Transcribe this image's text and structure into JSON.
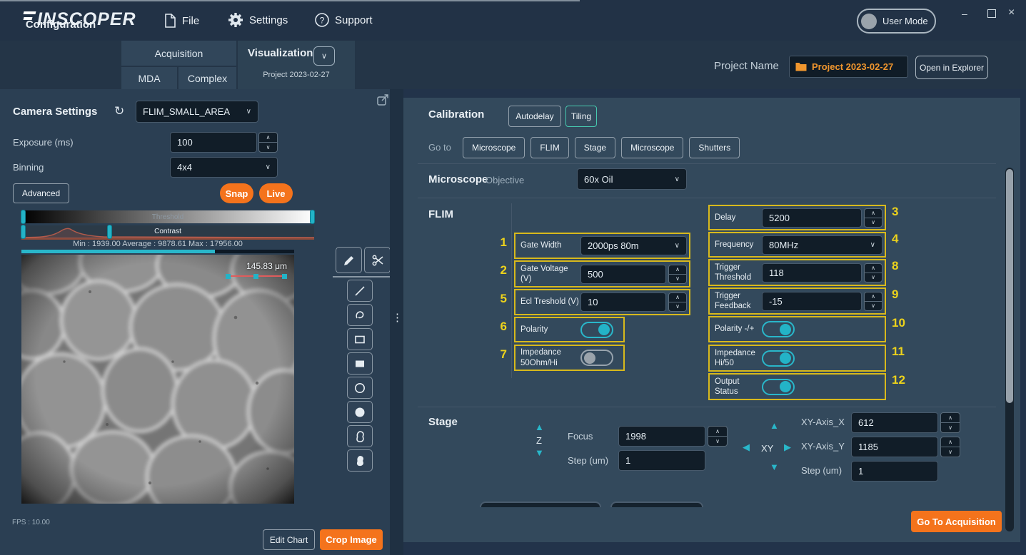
{
  "titlebar": {
    "brand": "INSCOPER",
    "menu_file": "File",
    "menu_settings": "Settings",
    "menu_support": "Support",
    "user_mode": "User Mode"
  },
  "nav": {
    "configuration": "Configuration",
    "acquisition": "Acquisition",
    "mda": "MDA",
    "complex": "Complex",
    "visualization": "Visualization",
    "visualization_project": "Project 2023-02-27"
  },
  "project": {
    "label": "Project Name",
    "name": "Project 2023-02-27",
    "open_explorer": "Open in Explorer"
  },
  "camera": {
    "title": "Camera Settings",
    "preset": "FLIM_SMALL_AREA",
    "exposure_label": "Exposure (ms)",
    "exposure_value": "100",
    "binning_label": "Binning",
    "binning_value": "4x4",
    "advanced": "Advanced",
    "snap": "Snap",
    "live": "Live",
    "threshold_label": "Threshold",
    "contrast_label": "Contrast",
    "stats": "Min : 1939.00 Average : 9878.61 Max : 17956.00",
    "scale_measure": "145.83 μm",
    "fps": "FPS : 10.00",
    "edit_chart": "Edit Chart",
    "crop_image": "Crop Image"
  },
  "calibration": {
    "title": "Calibration",
    "autodelay": "Autodelay",
    "tiling": "Tiling",
    "goto_label": "Go to",
    "goto_buttons": [
      "Microscope",
      "FLIM",
      "Stage",
      "Microscope",
      "Shutters"
    ]
  },
  "microscope": {
    "title": "Microscope",
    "objective_label": "Objective",
    "objective_value": "60x Oil"
  },
  "flim": {
    "title": "FLIM",
    "left": [
      {
        "num": "1",
        "label": "Gate Width",
        "type": "select",
        "value": "2000ps 80m"
      },
      {
        "num": "2",
        "label": "Gate Voltage (V)",
        "type": "spinner",
        "value": "500"
      },
      {
        "num": "5",
        "label": "Ecl Treshold (V)",
        "type": "spinner",
        "value": "10"
      },
      {
        "num": "6",
        "label": "Polarity",
        "type": "toggle",
        "value": "on"
      },
      {
        "num": "7",
        "label": "Impedance 50Ohm/Hi",
        "type": "toggle",
        "value": "off"
      }
    ],
    "right": [
      {
        "num": "3",
        "label": "Delay",
        "type": "spinner",
        "value": "5200"
      },
      {
        "num": "4",
        "label": "Frequency",
        "type": "select",
        "value": "80MHz"
      },
      {
        "num": "8",
        "label": "Trigger Threshold",
        "type": "spinner",
        "value": "118"
      },
      {
        "num": "9",
        "label": "Trigger Feedback",
        "type": "spinner",
        "value": "-15"
      },
      {
        "num": "10",
        "label": "Polarity -/+",
        "type": "toggle",
        "value": "on"
      },
      {
        "num": "11",
        "label": "Impedance Hi/50",
        "type": "toggle",
        "value": "on"
      },
      {
        "num": "12",
        "label": "Output Status",
        "type": "toggle",
        "value": "on"
      }
    ]
  },
  "stage": {
    "title": "Stage",
    "z_label": "Z",
    "focus_label": "Focus",
    "focus_value": "1998",
    "z_step_label": "Step (um)",
    "z_step_value": "1",
    "xy_label": "XY",
    "x_label": "XY-Axis_X",
    "x_value": "612",
    "y_label": "XY-Axis_Y",
    "y_value": "1185",
    "xy_step_label": "Step (um)",
    "xy_step_value": "1"
  },
  "footer": {
    "go_to_acquisition": "Go To Acquisition"
  },
  "colors": {
    "accent_cyan": "#29b7ca",
    "accent_orange": "#f4731c",
    "annotation_yellow": "#d8b91c",
    "tiling_teal": "#47c9b0"
  }
}
